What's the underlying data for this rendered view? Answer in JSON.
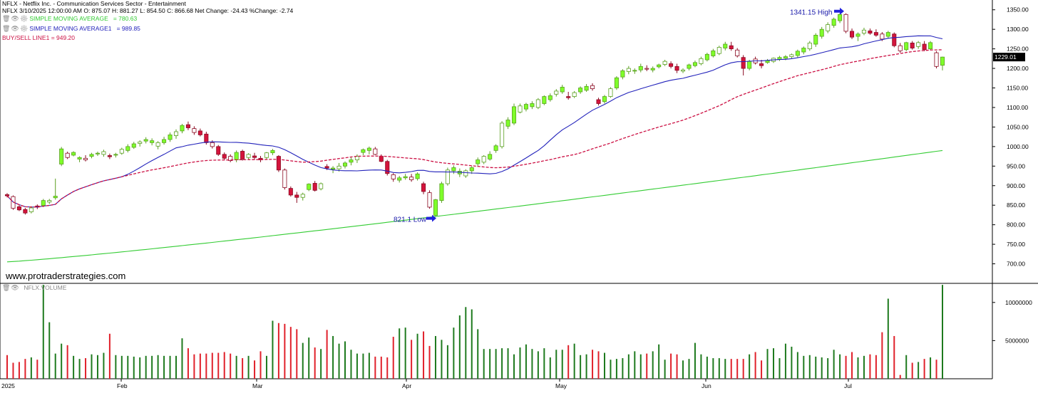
{
  "header": {
    "title": "NFLX - Netflix Inc. - Communication Services Sector - Entertainment",
    "ohlc": "NFLX 3/10/2025 12:00:00 AM O: 875.07 H: 881.27 L: 854.50 C: 866.68 Net Change: -24.43  %Change: -2.74"
  },
  "indicators": [
    {
      "label": "SIMPLE MOVING AVERAGE",
      "value": "= 780.63",
      "color": "#33cc33"
    },
    {
      "label": "SIMPLE MOVING AVERAGE1",
      "value": "= 989.85",
      "color": "#2222bb"
    },
    {
      "label": "BUY/SELL LINE1",
      "value": "= 949.20",
      "color": "#cc1144"
    }
  ],
  "volume_label": "NFLX.VOLUME",
  "watermark": "www.protraderstrategies.com",
  "chart_data": {
    "type": "candlestick",
    "price_axis": {
      "min": 650,
      "max": 1375,
      "ticks": [
        700,
        750,
        800,
        850,
        900,
        950,
        1000,
        1050,
        1100,
        1150,
        1200,
        1250,
        1300,
        1350
      ],
      "tick_labels": [
        "700.00",
        "750.00",
        "800.00",
        "850.00",
        "900.00",
        "950.00",
        "1000.00",
        "1050.00",
        "1100.00",
        "1150.00",
        "1200.00",
        "1250.00",
        "1300.00",
        "1350.00"
      ]
    },
    "last_price_label": "1229.01",
    "volume_axis": {
      "min": 0,
      "max": 12500000,
      "ticks": [
        5000000,
        10000000
      ],
      "tick_labels": [
        "5000000",
        "10000000"
      ]
    },
    "x_labels": [
      "2025",
      "Feb",
      "Mar",
      "Apr",
      "May",
      "Jun",
      "Jul"
    ],
    "candles": [
      [
        877,
        881,
        870,
        874,
        null
      ],
      [
        872,
        875,
        838,
        842,
        null
      ],
      [
        846,
        850,
        835,
        838,
        null
      ],
      [
        839,
        843,
        826,
        830,
        null
      ],
      [
        833,
        847,
        829,
        843,
        null
      ],
      [
        848,
        852,
        840,
        845,
        null
      ],
      [
        849,
        866,
        845,
        862,
        null
      ],
      [
        858,
        866,
        853,
        862,
        null
      ],
      [
        869,
        918,
        864,
        873,
        null
      ],
      [
        955,
        999,
        950,
        994,
        null
      ],
      [
        983,
        987,
        968,
        972,
        null
      ],
      [
        978,
        988,
        975,
        985,
        null
      ],
      [
        968,
        975,
        960,
        972,
        null
      ],
      [
        970,
        978,
        962,
        966,
        null
      ],
      [
        975,
        984,
        970,
        980,
        null
      ],
      [
        981,
        987,
        976,
        983,
        null
      ],
      [
        980,
        992,
        974,
        987,
        null
      ],
      [
        977,
        982,
        968,
        974,
        null
      ],
      [
        978,
        984,
        972,
        980,
        null
      ],
      [
        983,
        997,
        979,
        993,
        null
      ],
      [
        990,
        1006,
        985,
        1000,
        null
      ],
      [
        998,
        1012,
        994,
        1007,
        null
      ],
      [
        1008,
        1016,
        1000,
        1012,
        null
      ],
      [
        1014,
        1024,
        1008,
        1018,
        null
      ],
      [
        1010,
        1021,
        1003,
        1015,
        null
      ],
      [
        1001,
        1014,
        993,
        1010,
        null
      ],
      [
        1010,
        1025,
        1005,
        1018,
        null
      ],
      [
        1018,
        1036,
        1012,
        1030,
        null
      ],
      [
        1028,
        1044,
        1020,
        1038,
        null
      ],
      [
        1040,
        1058,
        1034,
        1054,
        null
      ],
      [
        1056,
        1064,
        1042,
        1048,
        null
      ],
      [
        1046,
        1052,
        1030,
        1036,
        null
      ],
      [
        1040,
        1046,
        1026,
        1030,
        null
      ],
      [
        1032,
        1038,
        1005,
        1010,
        null
      ],
      [
        1010,
        1016,
        995,
        1000,
        null
      ],
      [
        1000,
        1004,
        976,
        980,
        null
      ],
      [
        980,
        985,
        965,
        970,
        null
      ],
      [
        975,
        980,
        960,
        964,
        null
      ],
      [
        966,
        990,
        960,
        985,
        null
      ],
      [
        988,
        992,
        964,
        968,
        null
      ],
      [
        972,
        983,
        967,
        980,
        null
      ],
      [
        976,
        984,
        966,
        972,
        null
      ],
      [
        970,
        976,
        960,
        966,
        null
      ],
      [
        972,
        986,
        968,
        984,
        null
      ],
      [
        984,
        994,
        978,
        990,
        null
      ],
      [
        975,
        978,
        935,
        940,
        null
      ],
      [
        940,
        944,
        890,
        895,
        null
      ],
      [
        893,
        898,
        872,
        876,
        null
      ],
      [
        876,
        884,
        856,
        870,
        null
      ],
      [
        870,
        882,
        862,
        878,
        null
      ],
      [
        890,
        906,
        886,
        904,
        null
      ],
      [
        906,
        912,
        885,
        888,
        null
      ],
      [
        892,
        908,
        888,
        905,
        null
      ],
      [
        949,
        955,
        940,
        945,
        null
      ],
      [
        942,
        950,
        932,
        945,
        null
      ],
      [
        943,
        958,
        936,
        950,
        null
      ],
      [
        950,
        962,
        944,
        958,
        null
      ],
      [
        960,
        972,
        952,
        966,
        null
      ],
      [
        966,
        980,
        958,
        975,
        null
      ],
      [
        985,
        995,
        978,
        992,
        null
      ],
      [
        990,
        1000,
        980,
        996,
        null
      ],
      [
        994,
        999,
        978,
        980,
        null
      ],
      [
        975,
        980,
        960,
        962,
        null
      ],
      [
        962,
        966,
        926,
        931,
        null
      ],
      [
        928,
        932,
        910,
        917,
        null
      ],
      [
        914,
        925,
        908,
        920,
        null
      ],
      [
        920,
        930,
        915,
        923,
        null
      ],
      [
        922,
        930,
        910,
        915,
        null
      ],
      [
        918,
        934,
        913,
        930,
        null
      ],
      [
        905,
        910,
        878,
        885,
        null
      ],
      [
        882,
        888,
        841,
        845,
        null
      ],
      [
        824,
        866,
        821,
        864,
        null
      ],
      [
        862,
        910,
        856,
        905,
        null
      ],
      [
        905,
        946,
        900,
        940,
        null
      ],
      [
        938,
        952,
        930,
        946,
        null
      ],
      [
        930,
        944,
        922,
        937,
        null
      ],
      [
        925,
        942,
        920,
        938,
        null
      ],
      [
        938,
        950,
        930,
        946,
        null
      ],
      [
        956,
        972,
        948,
        966,
        null
      ],
      [
        960,
        978,
        955,
        975,
        null
      ],
      [
        968,
        988,
        964,
        980,
        null
      ],
      [
        990,
        1006,
        984,
        1002,
        null
      ],
      [
        1000,
        1065,
        995,
        1060,
        null
      ],
      [
        1052,
        1075,
        1045,
        1068,
        null
      ],
      [
        1060,
        1110,
        1055,
        1102,
        null
      ],
      [
        1088,
        1110,
        1085,
        1104,
        null
      ],
      [
        1096,
        1112,
        1090,
        1108,
        null
      ],
      [
        1102,
        1116,
        1096,
        1110,
        null
      ],
      [
        1100,
        1124,
        1096,
        1120,
        null
      ],
      [
        1110,
        1131,
        1106,
        1128,
        null
      ],
      [
        1120,
        1136,
        1115,
        1130,
        null
      ],
      [
        1134,
        1147,
        1128,
        1142,
        null
      ],
      [
        1140,
        1158,
        1135,
        1152,
        null
      ],
      [
        1128,
        1140,
        1120,
        1125,
        null
      ],
      [
        1128,
        1142,
        1124,
        1138,
        null
      ],
      [
        1140,
        1154,
        1135,
        1150,
        null
      ],
      [
        1144,
        1160,
        1140,
        1154,
        null
      ],
      [
        1156,
        1162,
        1143,
        1148,
        null
      ],
      [
        1120,
        1125,
        1105,
        1110,
        null
      ],
      [
        1115,
        1132,
        1110,
        1128,
        null
      ],
      [
        1128,
        1152,
        1125,
        1148,
        null
      ],
      [
        1150,
        1180,
        1145,
        1176,
        null
      ],
      [
        1178,
        1198,
        1172,
        1194,
        null
      ],
      [
        1192,
        1206,
        1185,
        1200,
        null
      ],
      [
        1193,
        1200,
        1186,
        1195,
        null
      ],
      [
        1196,
        1212,
        1190,
        1205,
        null
      ],
      [
        1200,
        1208,
        1193,
        1198,
        null
      ],
      [
        1196,
        1205,
        1190,
        1200,
        null
      ],
      [
        1204,
        1212,
        1200,
        1209,
        null
      ],
      [
        1210,
        1222,
        1206,
        1218,
        null
      ],
      [
        1212,
        1218,
        1200,
        1205,
        null
      ],
      [
        1205,
        1212,
        1188,
        1195,
        null
      ],
      [
        1193,
        1200,
        1188,
        1196,
        null
      ],
      [
        1200,
        1212,
        1195,
        1209,
        null
      ],
      [
        1207,
        1220,
        1203,
        1215,
        null
      ],
      [
        1212,
        1230,
        1208,
        1225,
        null
      ],
      [
        1222,
        1240,
        1218,
        1236,
        null
      ],
      [
        1232,
        1250,
        1228,
        1245,
        null
      ],
      [
        1238,
        1258,
        1234,
        1254,
        null
      ],
      [
        1252,
        1268,
        1246,
        1262,
        null
      ],
      [
        1258,
        1268,
        1245,
        1250,
        null
      ],
      [
        1247,
        1252,
        1228,
        1232,
        null
      ],
      [
        1228,
        1234,
        1182,
        1200,
        null
      ],
      [
        1200,
        1222,
        1195,
        1218,
        null
      ],
      [
        1224,
        1230,
        1210,
        1214,
        null
      ],
      [
        1212,
        1222,
        1200,
        1207,
        null
      ],
      [
        1215,
        1224,
        1212,
        1220,
        null
      ],
      [
        1218,
        1228,
        1214,
        1226,
        null
      ],
      [
        1223,
        1232,
        1219,
        1228,
        null
      ],
      [
        1226,
        1234,
        1221,
        1230,
        null
      ],
      [
        1230,
        1238,
        1225,
        1235,
        null
      ],
      [
        1233,
        1248,
        1228,
        1244,
        null
      ],
      [
        1242,
        1256,
        1236,
        1252,
        null
      ],
      [
        1250,
        1270,
        1245,
        1265,
        null
      ],
      [
        1262,
        1290,
        1255,
        1285,
        null
      ],
      [
        1282,
        1306,
        1276,
        1300,
        null
      ],
      [
        1296,
        1318,
        1290,
        1312,
        null
      ],
      [
        1310,
        1330,
        1304,
        1326,
        null
      ],
      [
        1322,
        1341,
        1316,
        1338,
        null
      ],
      [
        1338,
        1341,
        1290,
        1295,
        null
      ],
      [
        1295,
        1302,
        1275,
        1280,
        null
      ],
      [
        1282,
        1292,
        1270,
        1288,
        null
      ],
      [
        1290,
        1304,
        1285,
        1298,
        null
      ],
      [
        1296,
        1302,
        1286,
        1290,
        null
      ],
      [
        1292,
        1300,
        1281,
        1285,
        null
      ],
      [
        1288,
        1293,
        1270,
        1275,
        null
      ],
      [
        1282,
        1296,
        1276,
        1292,
        null
      ],
      [
        1288,
        1292,
        1254,
        1258,
        null
      ],
      [
        1258,
        1265,
        1240,
        1245,
        null
      ],
      [
        1248,
        1268,
        1244,
        1266,
        null
      ],
      [
        1265,
        1270,
        1248,
        1252,
        null
      ],
      [
        1256,
        1270,
        1250,
        1266,
        null
      ],
      [
        1262,
        1270,
        1244,
        1248,
        null
      ],
      [
        1250,
        1270,
        1246,
        1266,
        null
      ],
      [
        1240,
        1244,
        1200,
        1205,
        null
      ],
      [
        1208,
        1230,
        1195,
        1229,
        null
      ]
    ],
    "sma_green_start": 705,
    "sma_green_end": 990
  }
}
